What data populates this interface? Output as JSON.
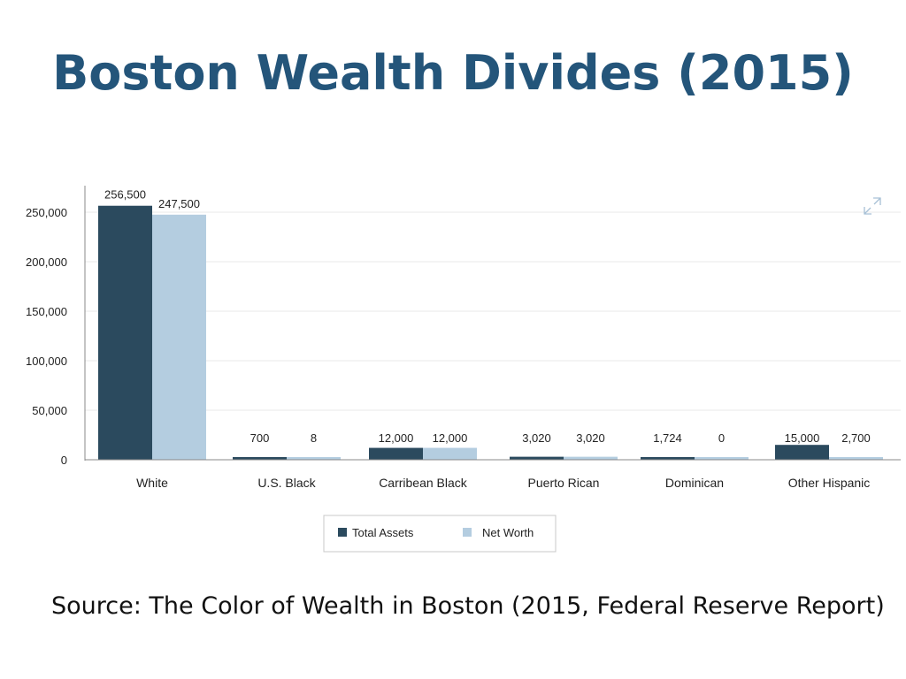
{
  "slide": {
    "title": "Boston Wealth Divides (2015)",
    "source": "Source: The Color of Wealth in Boston (2015, Federal Reserve Report)"
  },
  "colors": {
    "title": "#24557a",
    "total_assets": "#2b4a5e",
    "net_worth": "#b4cde0",
    "grid": "#e8e8e8",
    "expand_icon": "#a7c0d6"
  },
  "icons": {
    "expand": "expand-icon"
  },
  "chart_data": {
    "type": "bar",
    "categories": [
      "White",
      "U.S. Black",
      "Carribean Black",
      "Puerto Rican",
      "Dominican",
      "Other Hispanic"
    ],
    "series": [
      {
        "name": "Total Assets",
        "values": [
          256500,
          700,
          12000,
          3020,
          1724,
          15000
        ],
        "labels": [
          "256,500",
          "700",
          "12,000",
          "3,020",
          "1,724",
          "15,000"
        ]
      },
      {
        "name": "Net Worth",
        "values": [
          247500,
          8,
          12000,
          3020,
          0,
          2700
        ],
        "labels": [
          "247,500",
          "8",
          "12,000",
          "3,020",
          "0",
          "2,700"
        ]
      }
    ],
    "ylim": [
      0,
      275000
    ],
    "yticks": [
      0,
      50000,
      100000,
      150000,
      200000,
      250000
    ],
    "ytick_labels": [
      "0",
      "50,000",
      "100,000",
      "150,000",
      "200,000",
      "250,000"
    ],
    "grid": true,
    "legend_position": "bottom"
  }
}
